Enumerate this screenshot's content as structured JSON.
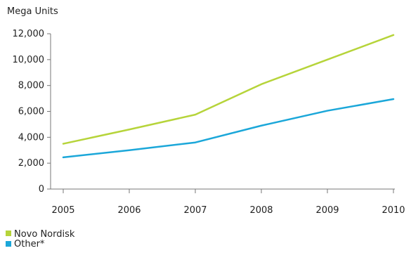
{
  "chart_data": {
    "type": "line",
    "ylabel": "Mega Units",
    "categories": [
      "2005",
      "2006",
      "2007",
      "2008",
      "2009",
      "2010"
    ],
    "y_ticks": [
      "0",
      "2,000",
      "4,000",
      "6,000",
      "8,000",
      "10,000",
      "12,000"
    ],
    "ylim": [
      0,
      12000
    ],
    "grid": false,
    "legend_position": "bottom-left",
    "series": [
      {
        "name": "Novo Nordisk",
        "color": "#b6d43a",
        "values": [
          3500,
          4600,
          5750,
          8100,
          10000,
          11900
        ]
      },
      {
        "name": "Other*",
        "color": "#1ba7d9",
        "values": [
          2450,
          3000,
          3600,
          4900,
          6050,
          6950
        ]
      }
    ]
  }
}
